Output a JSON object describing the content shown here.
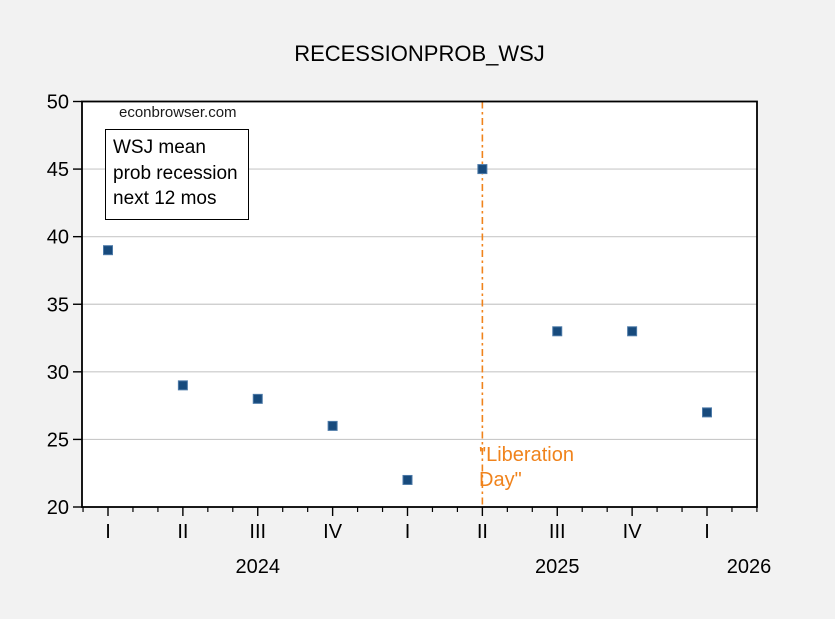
{
  "figure": {
    "watermark": "econbrowser.com",
    "legend": {
      "lines": [
        "WSJ mean",
        "prob recession",
        "next 12 mos"
      ]
    },
    "annotation": {
      "lines": [
        "\"Liberation",
        "Day\""
      ]
    }
  },
  "colors": {
    "background": "#f2f2f2",
    "plot_background": "#ffffff",
    "plot_border": "#000000",
    "grid": "#c9c9c9",
    "marker_fill": "#174a7c",
    "marker_edge": "#4d7aa8",
    "accent_orange": "#f0831c",
    "text": "#000000"
  },
  "chart_data": {
    "type": "scatter",
    "title": "RECESSIONPROB_WSJ",
    "series_name": "WSJ mean prob recession next 12 mos",
    "marker": "square",
    "grid": "horizontal",
    "categories": [
      "2024Q1",
      "2024Q2",
      "2024Q3",
      "2024Q4",
      "2025Q1",
      "2025Q2",
      "2025Q3",
      "2025Q4",
      "2026Q1"
    ],
    "values": [
      39,
      29,
      28,
      26,
      22,
      45,
      33,
      33,
      27
    ],
    "quarter_tick_labels": [
      "I",
      "II",
      "III",
      "IV",
      "I",
      "II",
      "III",
      "IV",
      "I"
    ],
    "year_labels": [
      "2024",
      "2025",
      "2026"
    ],
    "xlabel": "",
    "ylabel": "",
    "ylim": [
      20,
      50
    ],
    "yticks": [
      20,
      25,
      30,
      35,
      40,
      45,
      50
    ],
    "vline": {
      "at": "2025Q2",
      "label": "\"Liberation Day\"",
      "style": "dash-dot"
    }
  }
}
